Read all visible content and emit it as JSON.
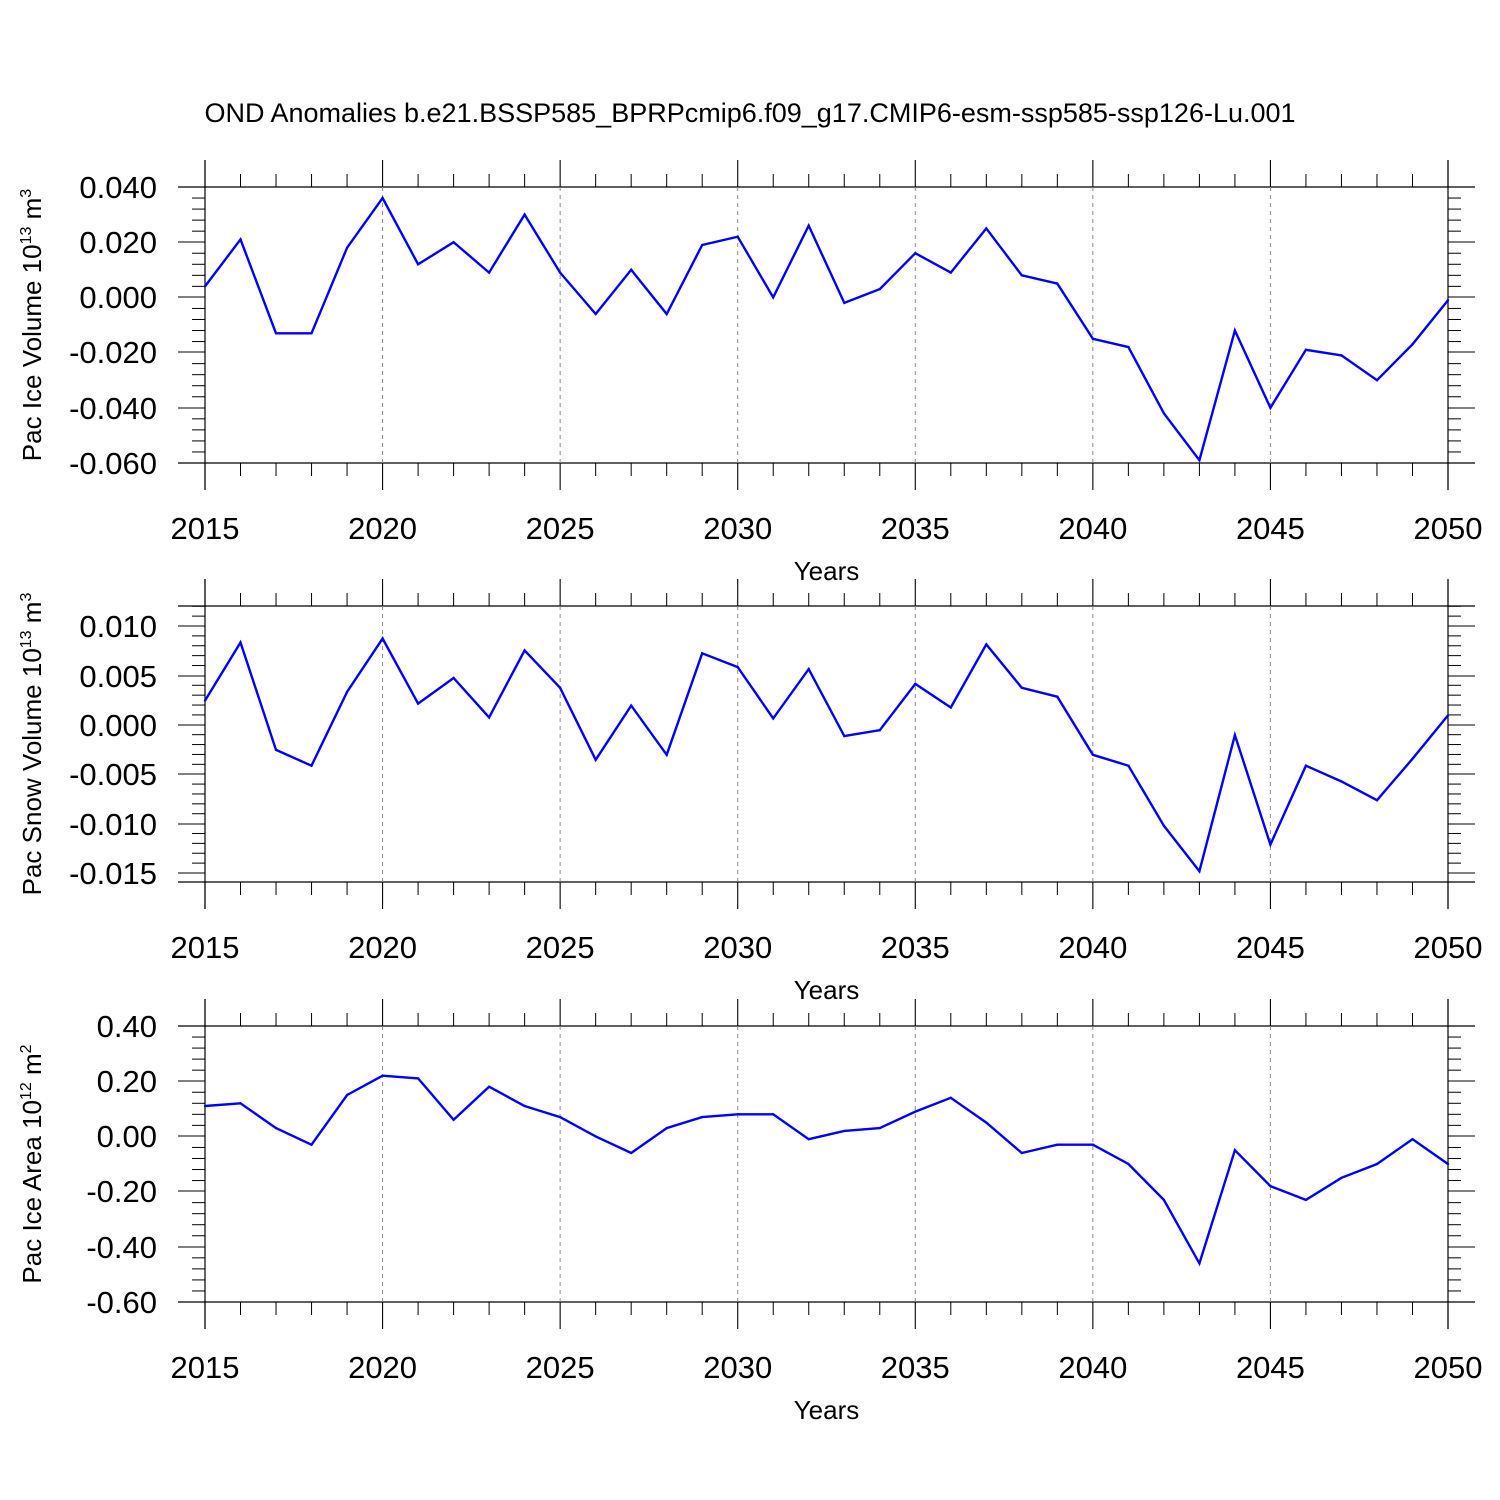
{
  "title": "OND Anomalies b.e21.BSSP585_BPRPcmip6.f09_g17.CMIP6-esm-ssp585-ssp126-Lu.001",
  "colors": {
    "line": "#0000ff",
    "axis": "#000000",
    "grid": "#8c8c8c"
  },
  "chart_data": [
    {
      "type": "line",
      "xlabel": "Years",
      "ylabel": {
        "text": "Pac Ice Volume 10",
        "sup": "13",
        "unit": " m",
        "unit_sup": "3"
      },
      "xlim": [
        2015,
        2050
      ],
      "ylim": [
        -0.06,
        0.04
      ],
      "xticks": [
        2015,
        2020,
        2025,
        2030,
        2035,
        2040,
        2045,
        2050
      ],
      "yticks": [
        "0.040",
        "0.020",
        "0.000",
        "-0.020",
        "-0.040",
        "-0.060"
      ],
      "grid": "vertical dashed at major x ticks",
      "x": [
        2015,
        2016,
        2017,
        2018,
        2019,
        2020,
        2021,
        2022,
        2023,
        2024,
        2025,
        2026,
        2027,
        2028,
        2029,
        2030,
        2031,
        2032,
        2033,
        2034,
        2035,
        2036,
        2037,
        2038,
        2039,
        2040,
        2041,
        2042,
        2043,
        2044,
        2045,
        2046,
        2047,
        2048,
        2049,
        2050
      ],
      "values": [
        0.004,
        0.021,
        -0.013,
        -0.013,
        0.018,
        0.036,
        0.012,
        0.02,
        0.009,
        0.03,
        0.009,
        -0.006,
        0.01,
        -0.006,
        0.019,
        0.022,
        0.0,
        0.026,
        -0.002,
        0.003,
        0.016,
        0.009,
        0.025,
        0.008,
        0.005,
        -0.015,
        -0.018,
        -0.042,
        -0.059,
        -0.012,
        -0.04,
        -0.019,
        -0.021,
        -0.03,
        -0.017,
        -0.001
      ]
    },
    {
      "type": "line",
      "xlabel": "Years",
      "ylabel": {
        "text": "Pac Snow Volume 10",
        "sup": "13",
        "unit": " m",
        "unit_sup": "3"
      },
      "xlim": [
        2015,
        2050
      ],
      "ylim": [
        -0.016,
        0.012
      ],
      "xticks": [
        2015,
        2020,
        2025,
        2030,
        2035,
        2040,
        2045,
        2050
      ],
      "yticks": [
        "0.010",
        "0.005",
        "0.000",
        "-0.005",
        "-0.010",
        "-0.015"
      ],
      "grid": "vertical dashed at major x ticks",
      "x": [
        2015,
        2016,
        2017,
        2018,
        2019,
        2020,
        2021,
        2022,
        2023,
        2024,
        2025,
        2026,
        2027,
        2028,
        2029,
        2030,
        2031,
        2032,
        2033,
        2034,
        2035,
        2036,
        2037,
        2038,
        2039,
        2040,
        2041,
        2042,
        2043,
        2044,
        2045,
        2046,
        2047,
        2048,
        2049,
        2050
      ],
      "values": [
        0.0024,
        0.0083,
        -0.0026,
        -0.0042,
        0.0033,
        0.0087,
        0.0021,
        0.0047,
        0.0007,
        0.0075,
        0.0037,
        -0.0036,
        0.0019,
        -0.0031,
        0.0072,
        0.0058,
        0.0006,
        0.0056,
        -0.0012,
        -0.0006,
        0.0041,
        0.0017,
        0.0081,
        0.0037,
        0.0028,
        -0.0031,
        -0.0042,
        -0.0103,
        -0.0149,
        -0.0011,
        -0.0122,
        -0.0042,
        -0.0058,
        -0.0077,
        -0.0035,
        0.0009
      ]
    },
    {
      "type": "line",
      "xlabel": "Years",
      "ylabel": {
        "text": "Pac Ice Area 10",
        "sup": "12",
        "unit": " m",
        "unit_sup": "2"
      },
      "xlim": [
        2015,
        2050
      ],
      "ylim": [
        -0.6,
        0.4
      ],
      "xticks": [
        2015,
        2020,
        2025,
        2030,
        2035,
        2040,
        2045,
        2050
      ],
      "yticks": [
        "0.40",
        "0.20",
        "0.00",
        "-0.20",
        "-0.40",
        "-0.60"
      ],
      "grid": "vertical dashed at major x ticks",
      "x": [
        2015,
        2016,
        2017,
        2018,
        2019,
        2020,
        2021,
        2022,
        2023,
        2024,
        2025,
        2026,
        2027,
        2028,
        2029,
        2030,
        2031,
        2032,
        2033,
        2034,
        2035,
        2036,
        2037,
        2038,
        2039,
        2040,
        2041,
        2042,
        2043,
        2044,
        2045,
        2046,
        2047,
        2048,
        2049,
        2050
      ],
      "values": [
        0.11,
        0.12,
        0.03,
        -0.03,
        0.15,
        0.22,
        0.21,
        0.06,
        0.18,
        0.11,
        0.07,
        0.0,
        -0.06,
        0.03,
        0.07,
        0.08,
        0.08,
        -0.01,
        0.02,
        0.03,
        0.09,
        0.14,
        0.05,
        -0.06,
        -0.03,
        -0.03,
        -0.1,
        -0.23,
        -0.46,
        -0.05,
        -0.18,
        -0.23,
        -0.15,
        -0.1,
        -0.01,
        -0.1
      ]
    }
  ]
}
